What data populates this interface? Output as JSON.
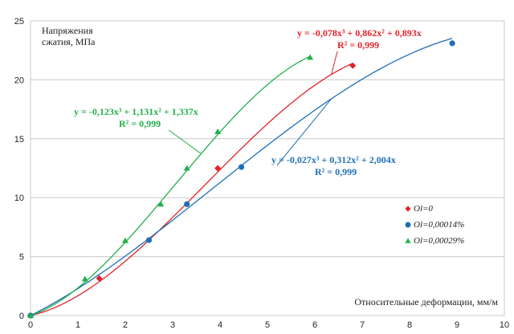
{
  "chart_data": {
    "type": "scatter",
    "xlim": [
      0,
      10
    ],
    "ylim": [
      0,
      25
    ],
    "x_ticks": [
      "0",
      "1",
      "2",
      "3",
      "4",
      "5",
      "6",
      "7",
      "8",
      "9",
      "10"
    ],
    "y_ticks": [
      "0",
      "5",
      "10",
      "15",
      "20",
      "25"
    ],
    "ylabel_lines": [
      "Напряжения",
      "сжатия, МПа"
    ],
    "xlabel": "Относительные деформации, мм/м",
    "grid": "horizontal",
    "legend_position": "right",
    "series": [
      {
        "name": "Ol=0",
        "marker": "diamond",
        "color": "#e0242a",
        "points": [
          [
            0,
            0
          ],
          [
            1.45,
            3.15
          ],
          [
            3.95,
            12.5
          ],
          [
            6.8,
            21.2
          ]
        ],
        "fit": {
          "a3": -0.078,
          "a2": 0.862,
          "a1": 0.893,
          "x_max": 6.8
        },
        "equation": "y = -0,078x³ + 0,862x² + 0,893x",
        "r2": "R² = 0,999"
      },
      {
        "name": "Ol=0,00014%",
        "marker": "circle",
        "color": "#1f6fb5",
        "points": [
          [
            0,
            0
          ],
          [
            2.5,
            6.4
          ],
          [
            3.3,
            9.45
          ],
          [
            4.45,
            12.6
          ],
          [
            8.9,
            23.1
          ]
        ],
        "fit": {
          "a3": -0.027,
          "a2": 0.312,
          "a1": 2.004,
          "x_max": 8.9
        },
        "equation": "y = -0,027x³ + 0,312x² + 2,004x",
        "r2": "R² = 0,999"
      },
      {
        "name": "Ol=0,00029%",
        "marker": "triangle",
        "color": "#22b04b",
        "points": [
          [
            0,
            0
          ],
          [
            1.15,
            3.1
          ],
          [
            2.0,
            6.35
          ],
          [
            2.75,
            9.45
          ],
          [
            3.3,
            12.5
          ],
          [
            3.95,
            15.6
          ],
          [
            5.9,
            21.9
          ]
        ],
        "fit": {
          "a3": -0.123,
          "a2": 1.131,
          "a1": 1.337,
          "x_max": 5.9
        },
        "equation": "y = -0,123x³ + 1,131x² + 1,337x",
        "r2": "R² = 0,999"
      }
    ]
  }
}
